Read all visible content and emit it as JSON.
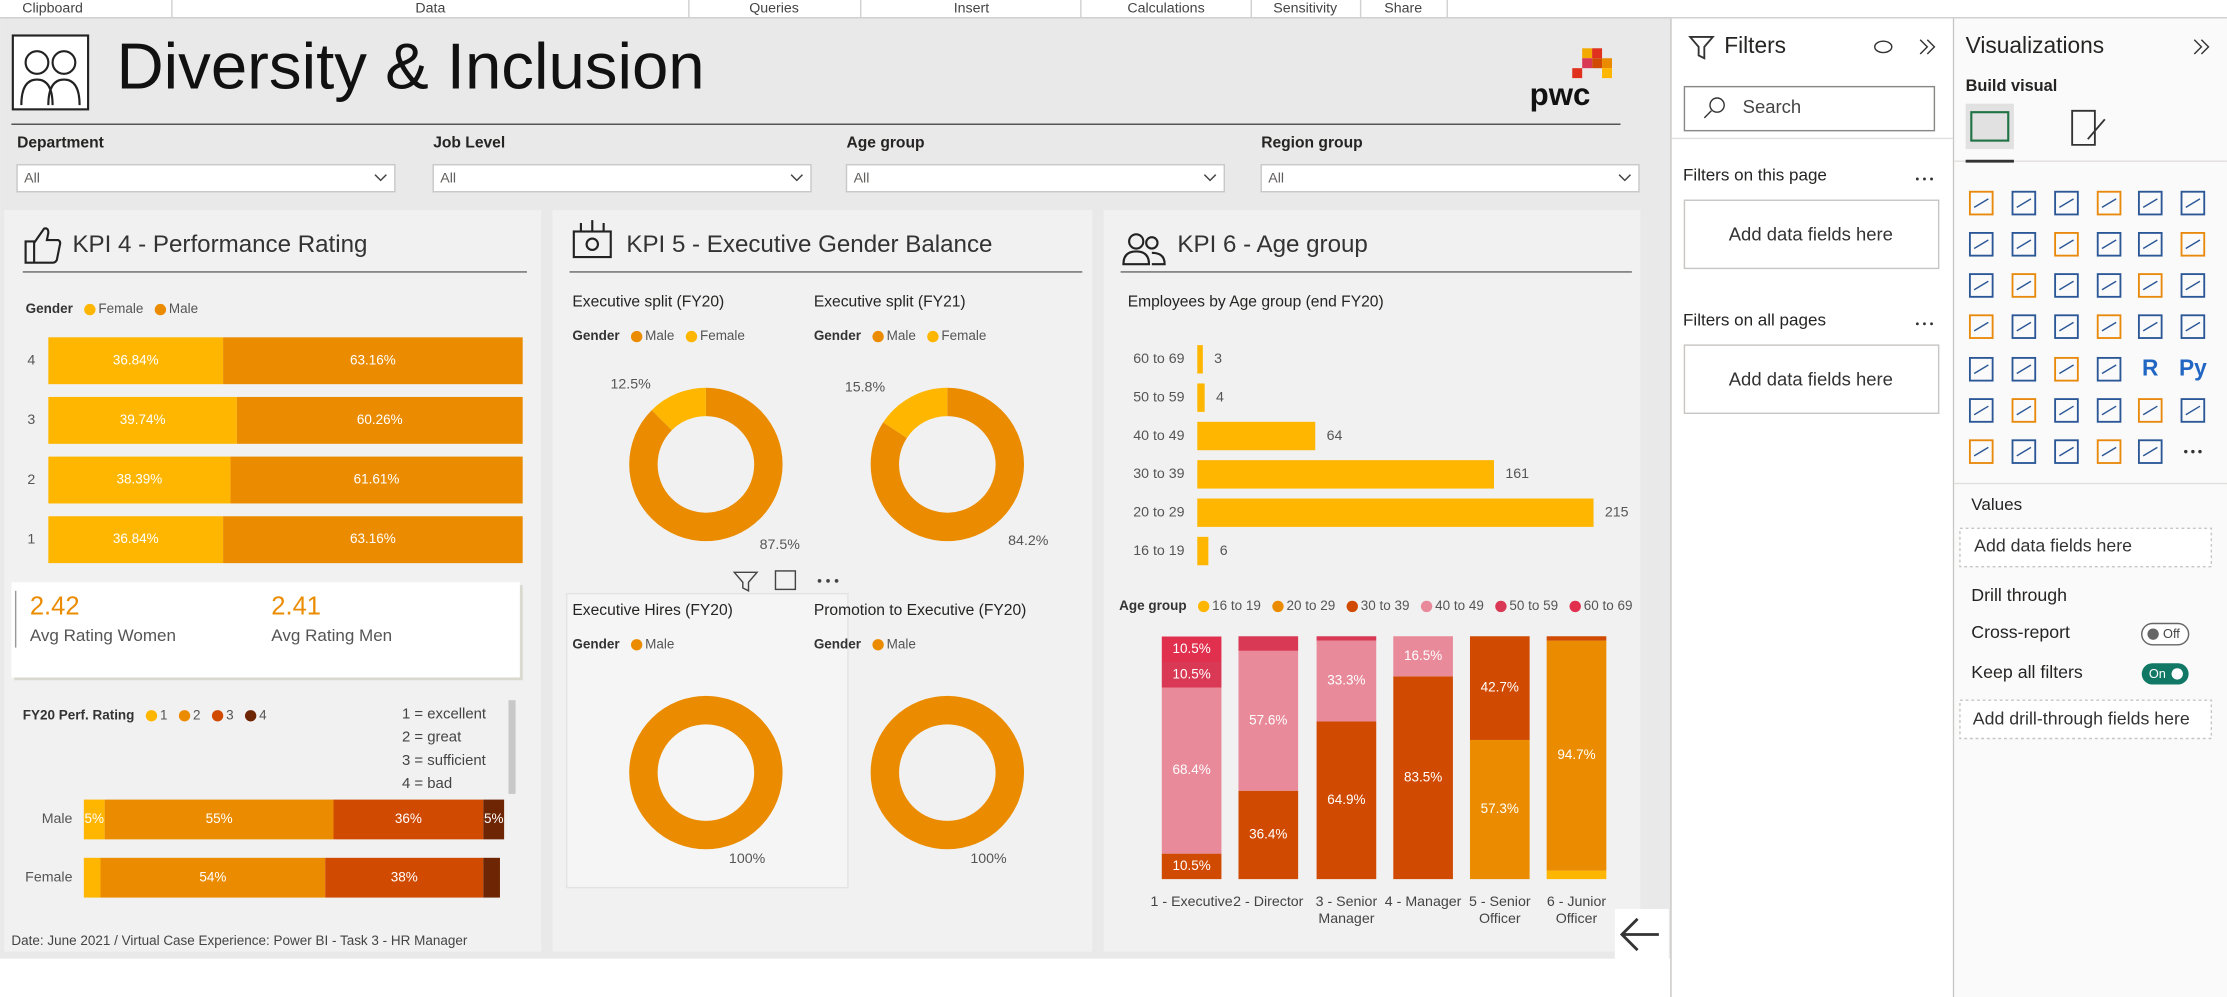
{
  "ribbon": {
    "tabs": [
      "Clipboard",
      "Data",
      "Queries",
      "Insert",
      "Calculations",
      "Sensitivity",
      "Share"
    ]
  },
  "header": {
    "title": "Diversity & Inclusion",
    "logo": "pwc"
  },
  "slicers": [
    {
      "label": "Department",
      "value": "All"
    },
    {
      "label": "Job Level",
      "value": "All"
    },
    {
      "label": "Age group",
      "value": "All"
    },
    {
      "label": "Region group",
      "value": "All"
    }
  ],
  "kpi4": {
    "title": "KPI 4 - Performance Rating",
    "rating_chart": {
      "type": "bar",
      "orientation": "horizontal",
      "stacked": true,
      "legend_title": "Gender",
      "categories": [
        "4",
        "3",
        "2",
        "1"
      ],
      "xlim": [
        0,
        100
      ],
      "series": [
        {
          "name": "Female",
          "color": "#ffb600",
          "values": [
            36.84,
            39.74,
            38.39,
            36.84
          ],
          "value_labels": [
            "36.84%",
            "39.74%",
            "38.39%",
            "36.84%"
          ]
        },
        {
          "name": "Male",
          "color": "#eb8c00",
          "values": [
            63.16,
            60.26,
            61.61,
            63.16
          ],
          "value_labels": [
            "63.16%",
            "60.26%",
            "61.61%",
            "63.16%"
          ]
        }
      ]
    },
    "cards": [
      {
        "value": 2.42,
        "label": "Avg Rating Women"
      },
      {
        "value": 2.41,
        "label": "Avg Rating Men"
      }
    ],
    "fy20_chart": {
      "type": "bar",
      "orientation": "horizontal",
      "stacked": true,
      "legend_title": "FY20 Perf. Rating",
      "categories": [
        "Male",
        "Female"
      ],
      "xlim": [
        0,
        100
      ],
      "series": [
        {
          "name": "1",
          "color": "#ffb600",
          "values": [
            5,
            4
          ],
          "value_labels": [
            "5%",
            null
          ]
        },
        {
          "name": "2",
          "color": "#eb8c00",
          "values": [
            55,
            54
          ],
          "value_labels": [
            "55%",
            "54%"
          ]
        },
        {
          "name": "3",
          "color": "#d04a02",
          "values": [
            36,
            38
          ],
          "value_labels": [
            "36%",
            "38%"
          ]
        },
        {
          "name": "4",
          "color": "#6e2504",
          "values": [
            5,
            4
          ],
          "value_labels": [
            "5%",
            null
          ]
        }
      ],
      "notes": [
        "1 = excellent",
        "2 = great",
        "3 = sufficient",
        "4 = bad"
      ]
    }
  },
  "footer": "Date: June 2021 / Virtual Case Experience: Power BI - Task 3 - HR Manager",
  "kpi5": {
    "title": "KPI 5 - Executive Gender Balance",
    "charts": [
      {
        "type": "donut",
        "title": "Executive split (FY20)",
        "legend_title": "Gender",
        "categories": [
          "Male",
          "Female"
        ],
        "colors": [
          "#eb8c00",
          "#ffb600"
        ],
        "values": [
          87.5,
          12.5
        ],
        "value_labels": [
          "87.5%",
          "12.5%"
        ]
      },
      {
        "type": "donut",
        "title": "Executive split (FY21)",
        "legend_title": "Gender",
        "categories": [
          "Male",
          "Female"
        ],
        "colors": [
          "#eb8c00",
          "#ffb600"
        ],
        "values": [
          84.2,
          15.8
        ],
        "value_labels": [
          "84.2%",
          "15.8%"
        ]
      },
      {
        "type": "donut",
        "title": "Executive Hires (FY20)",
        "legend_title": "Gender",
        "categories": [
          "Male"
        ],
        "colors": [
          "#eb8c00"
        ],
        "values": [
          100
        ],
        "value_labels": [
          "100%"
        ]
      },
      {
        "type": "donut",
        "title": "Promotion to Executive (FY20)",
        "legend_title": "Gender",
        "categories": [
          "Male"
        ],
        "colors": [
          "#eb8c00"
        ],
        "values": [
          100
        ],
        "value_labels": [
          "100%"
        ]
      }
    ]
  },
  "kpi6": {
    "title": "KPI 6 - Age group",
    "age_chart": {
      "type": "bar",
      "orientation": "horizontal",
      "title": "Employees by Age group (end FY20)",
      "categories": [
        "60 to 69",
        "50 to 59",
        "40 to 49",
        "30 to 39",
        "20 to 29",
        "16 to 19"
      ],
      "values": [
        3,
        4,
        64,
        161,
        215,
        6
      ],
      "color": "#ffb600"
    },
    "level_chart": {
      "type": "bar",
      "stacked": true,
      "legend_title": "Age group",
      "categories": [
        "1 - Executive",
        "2 - Director",
        "3 - Senior Manager",
        "4 - Manager",
        "5 - Senior Officer",
        "6 - Junior Officer"
      ],
      "ylim": [
        0,
        100
      ],
      "series": [
        {
          "name": "16 to 19",
          "color": "#ffb600",
          "values": [
            null,
            null,
            null,
            null,
            null,
            3.5
          ],
          "value_labels": [
            null,
            null,
            null,
            null,
            null,
            null
          ]
        },
        {
          "name": "20 to 29",
          "color": "#eb8c00",
          "values": [
            null,
            null,
            null,
            null,
            57.3,
            94.7
          ],
          "value_labels": [
            null,
            null,
            null,
            null,
            "57.3%",
            "94.7%"
          ]
        },
        {
          "name": "30 to 39",
          "color": "#d04a02",
          "values": [
            10.5,
            36.4,
            64.9,
            83.5,
            42.7,
            1.8
          ],
          "value_labels": [
            "10.5%",
            "36.4%",
            "64.9%",
            "83.5%",
            "42.7%",
            null
          ]
        },
        {
          "name": "40 to 49",
          "color": "#e88a9a",
          "values": [
            68.4,
            57.6,
            33.3,
            16.5,
            null,
            null
          ],
          "value_labels": [
            "68.4%",
            "57.6%",
            "33.3%",
            "16.5%",
            null,
            null
          ]
        },
        {
          "name": "50 to 59",
          "color": "#d93954",
          "values": [
            10.5,
            6.0,
            1.8,
            null,
            null,
            null
          ],
          "value_labels": [
            "10.5%",
            null,
            null,
            null,
            null,
            null
          ]
        },
        {
          "name": "60 to 69",
          "color": "#e0304e",
          "values": [
            10.5,
            null,
            null,
            null,
            null,
            null
          ],
          "value_labels": [
            "10.5%",
            null,
            null,
            null,
            null,
            null
          ]
        }
      ]
    }
  },
  "filters_pane": {
    "title": "Filters",
    "search": "Search",
    "sections": [
      {
        "title": "Filters on this page",
        "placeholder": "Add data fields here"
      },
      {
        "title": "Filters on all pages",
        "placeholder": "Add data fields here"
      }
    ]
  },
  "visualizations_pane": {
    "title": "Visualizations",
    "subtitle": "Build visual",
    "icon_labels": [
      "R",
      "Py"
    ],
    "values_title": "Values",
    "values_placeholder": "Add data fields here",
    "drill_title": "Drill through",
    "cross_report": {
      "label": "Cross-report",
      "state": "Off"
    },
    "keep_filters": {
      "label": "Keep all filters",
      "state": "On"
    },
    "drill_placeholder": "Add drill-through fields here"
  }
}
